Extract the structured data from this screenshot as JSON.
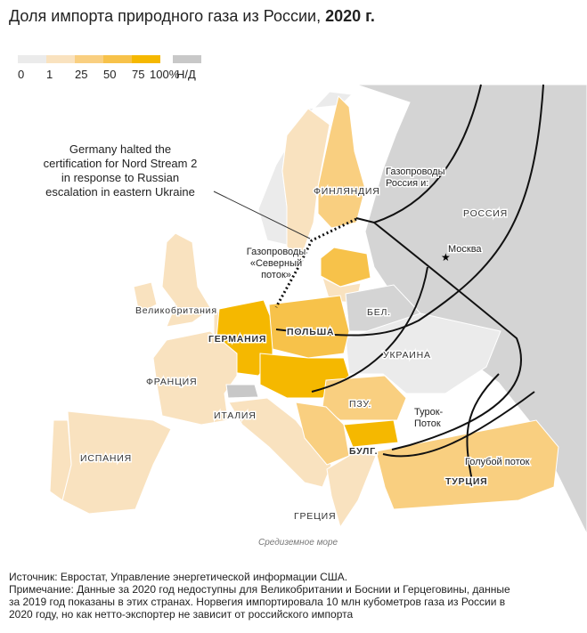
{
  "header": {
    "title": "Доля импорта природного газа из России,",
    "title_year": "2020 г."
  },
  "legend": {
    "items": [
      {
        "label": "0",
        "color": "#ebebeb"
      },
      {
        "label": "1",
        "color": "#f9e2bf"
      },
      {
        "label": "25",
        "color": "#f9cf80"
      },
      {
        "label": "50",
        "color": "#f7c24a"
      },
      {
        "label": "75",
        "color": "#f5b800"
      },
      {
        "label": "100%",
        "color": null
      },
      {
        "label": "Н/Д",
        "color": "#c8c8c8"
      }
    ]
  },
  "annotation": {
    "lines": [
      "Germany halted the",
      "certification for Nord Stream 2",
      "in response to Russian",
      "escalation in eastern Ukraine"
    ]
  },
  "labels": {
    "finland": "ФИНЛЯНДИЯ",
    "russia": "РОССИЯ",
    "moscow": "Москва",
    "pipelines_russia": [
      "Газопроводы",
      "Россия и:"
    ],
    "nord_stream": [
      "Газопроводы",
      "«Северный",
      "поток»"
    ],
    "uk": "Великобритания",
    "belarus": "БЕЛ.",
    "germany": "ГЕРМАНИЯ",
    "poland": "ПОЛЬША",
    "ukraine": "УКРАИНА",
    "france": "ФРАНЦИЯ",
    "italy": "ИТАЛИЯ",
    "romania": "ПЗУ.",
    "turkstream": [
      "Турок-",
      "Поток"
    ],
    "bulgaria": "БУЛГ.",
    "spain": "ИСПАНИЯ",
    "blue_stream": "Голубой поток",
    "turkey": "ТУРЦИЯ",
    "greece": "ГРЕЦИЯ",
    "sea": "Средиземное море"
  },
  "footer": {
    "lines": [
      "Источник: Евростат, Управление энергетической информации США.",
      "Примечание: Данные за 2020 год недоступны для Великобритании и Боснии и Герцеговины, данные",
      "за 2019 год показаны в этих странах. Норвегия импортировала 10 млн кубометров газа из России в",
      "2020 году, но как нетто-экспортер не зависит от российского импорта"
    ]
  }
}
